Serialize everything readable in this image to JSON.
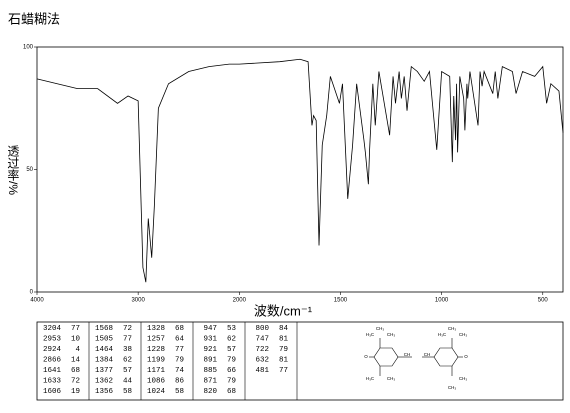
{
  "chart_data": {
    "type": "line",
    "title": "石蜡糊法",
    "x_label": "波数/cm⁻¹",
    "y_label": "透过率/%",
    "x": [
      4000,
      3800,
      3600,
      3400,
      3204,
      3100,
      3000,
      2953,
      2924,
      2900,
      2866,
      2840,
      2800,
      2700,
      2500,
      2300,
      2100,
      2000,
      1800,
      1700,
      1660,
      1641,
      1633,
      1620,
      1606,
      1590,
      1568,
      1550,
      1505,
      1490,
      1464,
      1440,
      1420,
      1384,
      1377,
      1362,
      1356,
      1340,
      1328,
      1310,
      1257,
      1240,
      1228,
      1210,
      1199,
      1185,
      1171,
      1150,
      1120,
      1086,
      1060,
      1024,
      1000,
      960,
      947,
      940,
      931,
      926,
      921,
      910,
      891,
      885,
      875,
      871,
      860,
      820,
      810,
      800,
      790,
      747,
      735,
      722,
      700,
      650,
      632,
      600,
      540,
      500,
      481,
      460,
      420,
      400
    ],
    "values": [
      87,
      85,
      83,
      83,
      77,
      80,
      78,
      10,
      4,
      30,
      14,
      35,
      75,
      85,
      90,
      92,
      93,
      93,
      94,
      95,
      94,
      68,
      72,
      70,
      19,
      60,
      72,
      88,
      77,
      85,
      38,
      60,
      85,
      62,
      57,
      44,
      58,
      85,
      68,
      90,
      64,
      88,
      77,
      90,
      79,
      88,
      74,
      92,
      90,
      86,
      90,
      58,
      90,
      88,
      53,
      80,
      62,
      85,
      57,
      88,
      79,
      66,
      85,
      79,
      90,
      68,
      90,
      84,
      90,
      81,
      90,
      79,
      92,
      90,
      81,
      90,
      88,
      92,
      77,
      85,
      82,
      65
    ],
    "color": "#000000",
    "xlim": [
      4000,
      400
    ],
    "xticks": [
      4000,
      3000,
      2000,
      1500,
      1000,
      500
    ],
    "ylim": [
      0,
      100
    ],
    "yticks": [
      0,
      50,
      100
    ],
    "grid": false
  },
  "peak_table": {
    "columns": [
      [
        [
          3204,
          77
        ],
        [
          2953,
          10
        ],
        [
          2924,
          4
        ],
        [
          2866,
          14
        ],
        [
          1641,
          68
        ],
        [
          1633,
          72
        ],
        [
          1606,
          19
        ]
      ],
      [
        [
          1568,
          72
        ],
        [
          1505,
          77
        ],
        [
          1464,
          38
        ],
        [
          1384,
          62
        ],
        [
          1377,
          57
        ],
        [
          1362,
          44
        ],
        [
          1356,
          58
        ]
      ],
      [
        [
          1328,
          68
        ],
        [
          1257,
          64
        ],
        [
          1228,
          77
        ],
        [
          1199,
          79
        ],
        [
          1171,
          74
        ],
        [
          1086,
          86
        ],
        [
          1024,
          58
        ]
      ],
      [
        [
          947,
          53
        ],
        [
          931,
          62
        ],
        [
          921,
          57
        ],
        [
          891,
          79
        ],
        [
          885,
          66
        ],
        [
          871,
          79
        ],
        [
          820,
          68
        ]
      ],
      [
        [
          800,
          84
        ],
        [
          747,
          81
        ],
        [
          722,
          79
        ],
        [
          632,
          81
        ],
        [
          481,
          77
        ]
      ]
    ]
  },
  "structure": {
    "labels": [
      "CH₃",
      "H₃C",
      "CH₃",
      "CH₃",
      "H₃C",
      "CH₃",
      "O",
      "CH",
      "CH",
      "O",
      "H₃C",
      "CH₃",
      "CH₃",
      "CH₃"
    ]
  }
}
